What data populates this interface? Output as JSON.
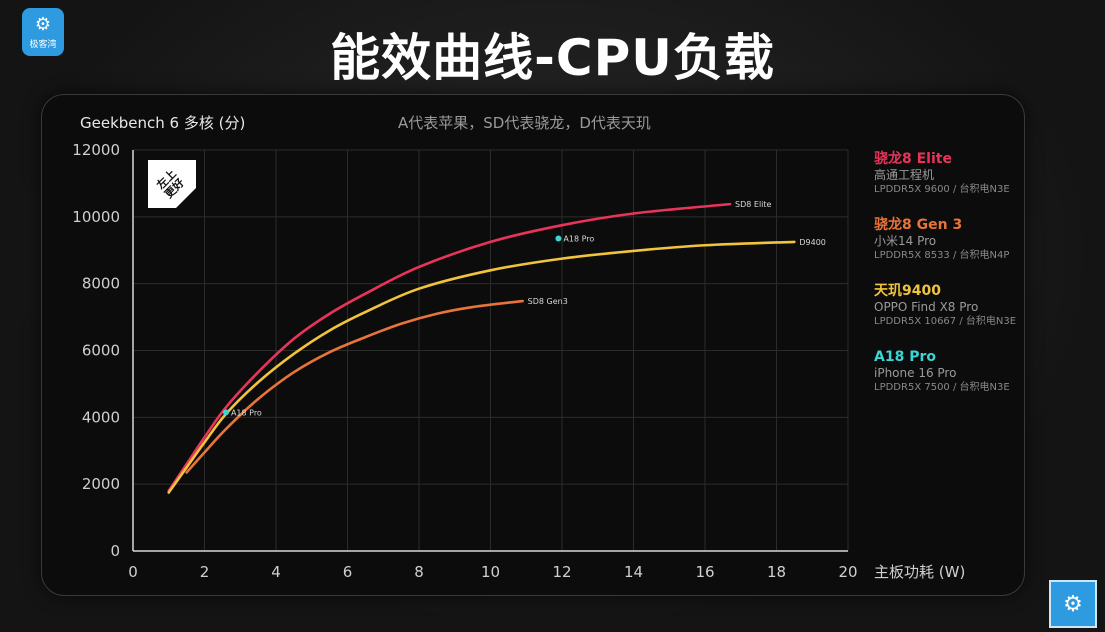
{
  "title": "能效曲线-CPU负载",
  "logo_label": "极客湾",
  "chart_header": {
    "ylabel": "Geekbench 6  多核 (分)",
    "note": "A代表苹果，SD代表骁龙，D代表天玑"
  },
  "badge_label": "左上更好",
  "colors": {
    "sd8elite": "#e8345a",
    "sd8gen3": "#e8743a",
    "d9400": "#f0c43c",
    "a18pro": "#3cd4d4"
  },
  "legend": [
    {
      "name": "骁龙8 Elite",
      "device": "高通工程机",
      "memory": "LPDDR5X 9600 / 台积电N3E",
      "color": "#e8345a"
    },
    {
      "name": "骁龙8 Gen 3",
      "device": "小米14 Pro",
      "memory": "LPDDR5X 8533 / 台积电N4P",
      "color": "#e8743a"
    },
    {
      "name": "天玑9400",
      "device": "OPPO Find X8 Pro",
      "memory": "LPDDR5X 10667 / 台积电N3E",
      "color": "#f0c43c"
    },
    {
      "name": "A18 Pro",
      "device": "iPhone 16 Pro",
      "memory": "LPDDR5X 7500 / 台积电N3E",
      "color": "#3cd4d4"
    }
  ],
  "chart_data": {
    "type": "line",
    "title": "能效曲线-CPU负载",
    "xlabel": "主板功耗 (W)",
    "ylabel": "Geekbench 6  多核 (分)",
    "xlim": [
      0,
      20
    ],
    "ylim": [
      0,
      12000
    ],
    "xticks": [
      0,
      2,
      4,
      6,
      8,
      10,
      12,
      14,
      16,
      18,
      20
    ],
    "yticks": [
      0,
      2000,
      4000,
      6000,
      8000,
      10000,
      12000
    ],
    "grid": true,
    "legend_position": "right",
    "series": [
      {
        "name": "骁龙8 Elite",
        "end_label": "SD8 Elite",
        "color": "#e8345a",
        "x": [
          1.0,
          1.5,
          2.0,
          2.6,
          3.5,
          4.5,
          5.5,
          6.5,
          8.0,
          10.0,
          12.0,
          14.0,
          16.7
        ],
        "y": [
          1800,
          2600,
          3400,
          4300,
          5350,
          6350,
          7100,
          7700,
          8500,
          9250,
          9750,
          10100,
          10380
        ]
      },
      {
        "name": "天玑9400",
        "end_label": "D9400",
        "color": "#f0c43c",
        "x": [
          1.0,
          1.5,
          2.0,
          2.6,
          3.5,
          4.5,
          5.5,
          6.5,
          8.0,
          10.0,
          12.0,
          14.0,
          16.0,
          18.5
        ],
        "y": [
          1750,
          2500,
          3250,
          4100,
          5050,
          5900,
          6600,
          7150,
          7850,
          8400,
          8750,
          8980,
          9150,
          9250
        ]
      },
      {
        "name": "骁龙8 Gen 3",
        "end_label": "SD8 Gen3",
        "color": "#e8743a",
        "x": [
          1.5,
          2.0,
          2.6,
          3.5,
          4.5,
          5.5,
          6.5,
          7.5,
          8.5,
          9.5,
          10.9
        ],
        "y": [
          2350,
          2950,
          3650,
          4550,
          5350,
          5950,
          6400,
          6800,
          7100,
          7300,
          7480
        ]
      },
      {
        "name": "A18 Pro",
        "color": "#3cd4d4",
        "type": "scatter",
        "x": [
          2.6,
          11.9
        ],
        "y": [
          4150,
          9350
        ],
        "labels": [
          "A18 Pro",
          "A18 Pro"
        ]
      }
    ]
  }
}
